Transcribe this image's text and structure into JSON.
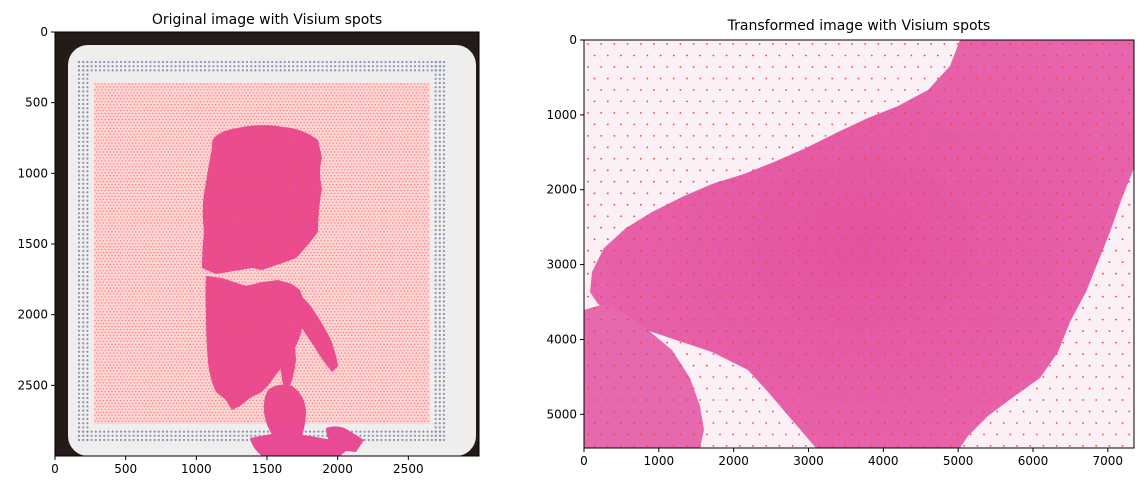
{
  "chart_data": [
    {
      "type": "image",
      "title": "Original image with Visium spots",
      "xlabel": "",
      "ylabel": "",
      "xlim": [
        0,
        3000
      ],
      "ylim": [
        3000,
        0
      ],
      "xticks": [
        "0",
        "500",
        "1000",
        "1500",
        "2000",
        "2500"
      ],
      "xtick_values": [
        0,
        500,
        1000,
        1500,
        2000,
        2500
      ],
      "yticks": [
        "0",
        "500",
        "1000",
        "1500",
        "2000",
        "2500"
      ],
      "ytick_values": [
        0,
        500,
        1000,
        1500,
        2000,
        2500
      ],
      "spot_color": "#ff5a5a",
      "fiducial_color": "#8a94b8",
      "tissue_color": "#e84a94",
      "slide_color": "#efeeec",
      "background_color": "#241a18",
      "grid": false
    },
    {
      "type": "image",
      "title": "Transformed image with Visium spots",
      "xlabel": "",
      "ylabel": "",
      "xlim": [
        0,
        7350
      ],
      "ylim": [
        5450,
        0
      ],
      "xticks": [
        "0",
        "1000",
        "2000",
        "3000",
        "4000",
        "5000",
        "6000",
        "7000"
      ],
      "xtick_values": [
        0,
        1000,
        2000,
        3000,
        4000,
        5000,
        6000,
        7000
      ],
      "yticks": [
        "0",
        "1000",
        "2000",
        "3000",
        "4000",
        "5000"
      ],
      "ytick_values": [
        0,
        1000,
        2000,
        3000,
        4000,
        5000
      ],
      "spot_color": "#ff3b3b",
      "tissue_color": "#e45aa8",
      "background_color": "#fbf0f6",
      "grid": false
    }
  ]
}
